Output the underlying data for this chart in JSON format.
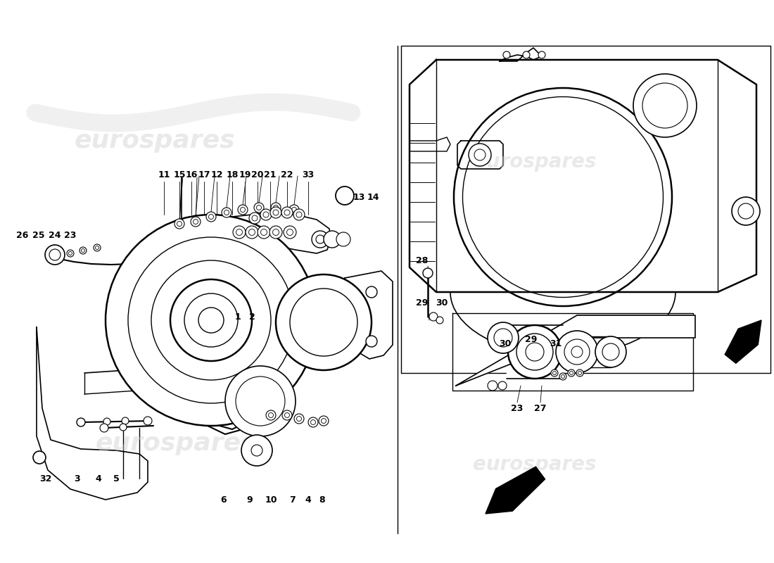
{
  "background_color": "#ffffff",
  "line_color": "#000000",
  "figsize": [
    11.0,
    8.0
  ],
  "dpi": 100,
  "watermark_text": "eurospares",
  "wm_color": "#d0d0d0",
  "top_labels": [
    [
      "11",
      233,
      248
    ],
    [
      "15",
      255,
      248
    ],
    [
      "16",
      272,
      248
    ],
    [
      "17",
      290,
      248
    ],
    [
      "12",
      308,
      248
    ],
    [
      "18",
      330,
      248
    ],
    [
      "19",
      348,
      248
    ],
    [
      "20",
      366,
      248
    ],
    [
      "21",
      384,
      248
    ],
    [
      "22",
      408,
      248
    ],
    [
      "33",
      438,
      248
    ]
  ],
  "left_labels": [
    [
      "26",
      32,
      335
    ],
    [
      "25",
      55,
      335
    ],
    [
      "24",
      78,
      335
    ],
    [
      "23",
      100,
      335
    ]
  ],
  "center_labels": [
    [
      "1",
      338,
      450
    ],
    [
      "2",
      358,
      450
    ]
  ],
  "oring_labels": [
    [
      "13",
      510,
      280
    ],
    [
      "14",
      530,
      280
    ]
  ],
  "bottom_labels": [
    [
      "32",
      65,
      680
    ],
    [
      "3",
      110,
      680
    ],
    [
      "4",
      140,
      680
    ],
    [
      "5",
      165,
      680
    ],
    [
      "6",
      318,
      710
    ],
    [
      "9",
      355,
      710
    ],
    [
      "10",
      385,
      710
    ],
    [
      "7",
      415,
      710
    ],
    [
      "4",
      438,
      710
    ],
    [
      "8",
      458,
      710
    ]
  ],
  "right_labels_upper": [
    [
      "28",
      600,
      370
    ],
    [
      "29",
      600,
      430
    ],
    [
      "30",
      628,
      430
    ]
  ],
  "right_labels_lower": [
    [
      "30",
      718,
      488
    ],
    [
      "29",
      755,
      482
    ],
    [
      "31",
      790,
      488
    ],
    [
      "23",
      735,
      580
    ],
    [
      "27",
      768,
      580
    ]
  ]
}
